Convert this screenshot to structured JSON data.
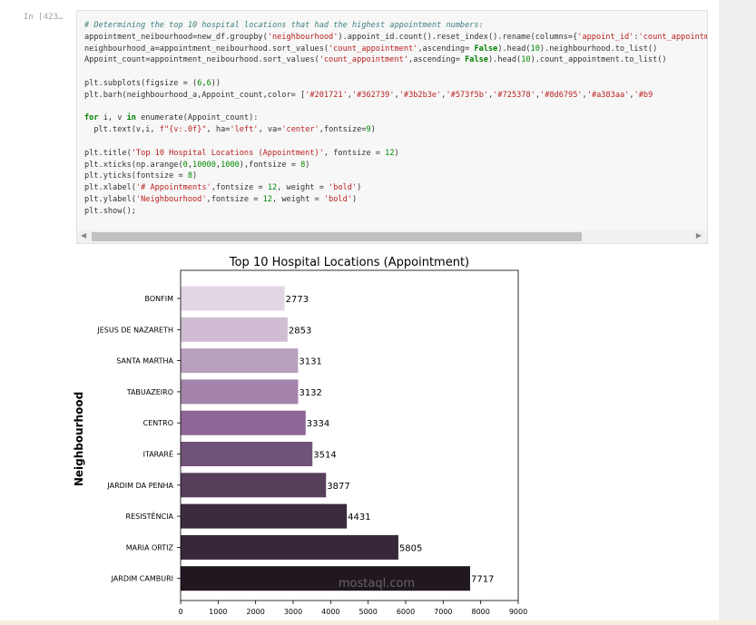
{
  "cell": {
    "prompt": "In [423…",
    "code_lines": [
      {
        "parts": [
          [
            "cm",
            "# Determining the top 10 hospital locations that had the highest appointment numbers:"
          ]
        ]
      },
      {
        "parts": [
          [
            "",
            "appointment_neibourhood=new_df.groupby("
          ],
          [
            "s",
            "'neighbourhood'"
          ],
          [
            "",
            ").appoint_id.count().reset_index().rename(columns={"
          ],
          [
            "s",
            "'appoint_id'"
          ],
          [
            "",
            ":"
          ],
          [
            "s",
            "'count_appointment'"
          ],
          [
            "",
            "})"
          ]
        ]
      },
      {
        "parts": [
          [
            "",
            "neighbourhood_a=appointment_neibourhood.sort_values("
          ],
          [
            "s",
            "'count_appointment'"
          ],
          [
            "",
            ",ascending= "
          ],
          [
            "k",
            "False"
          ],
          [
            "",
            ").head("
          ],
          [
            "n",
            "10"
          ],
          [
            "",
            ").neighbourhood.to_list()"
          ]
        ]
      },
      {
        "parts": [
          [
            "",
            "Appoint_count=appointment_neibourhood.sort_values("
          ],
          [
            "s",
            "'count_appointment'"
          ],
          [
            "",
            ",ascending= "
          ],
          [
            "k",
            "False"
          ],
          [
            "",
            ").head("
          ],
          [
            "n",
            "10"
          ],
          [
            "",
            ").count_appointment.to_list()"
          ]
        ]
      },
      {
        "parts": [
          [
            "",
            ""
          ]
        ]
      },
      {
        "parts": [
          [
            "",
            "plt.subplots(figsize = ("
          ],
          [
            "n",
            "6"
          ],
          [
            "",
            ","
          ],
          [
            "n",
            "6"
          ],
          [
            "",
            "))"
          ]
        ]
      },
      {
        "parts": [
          [
            "",
            "plt.barh(neighbourhood_a,Appoint_count,color= ["
          ],
          [
            "s",
            "'#201721'"
          ],
          [
            "",
            ","
          ],
          [
            "s",
            "'#362739'"
          ],
          [
            "",
            ","
          ],
          [
            "s",
            "'#3b2b3e'"
          ],
          [
            "",
            ","
          ],
          [
            "s",
            "'#573f5b'"
          ],
          [
            "",
            ","
          ],
          [
            "s",
            "'#725378'"
          ],
          [
            "",
            ","
          ],
          [
            "s",
            "'#8d6795'"
          ],
          [
            "",
            ","
          ],
          [
            "s",
            "'#a383aa'"
          ],
          [
            "",
            ","
          ],
          [
            "s",
            "'#b9"
          ]
        ]
      },
      {
        "parts": [
          [
            "",
            ""
          ]
        ]
      },
      {
        "parts": [
          [
            "k",
            "for"
          ],
          [
            "",
            " i, v "
          ],
          [
            "k",
            "in"
          ],
          [
            "",
            " enumerate(Appoint_count):"
          ]
        ]
      },
      {
        "parts": [
          [
            "",
            "  plt.text(v,i, "
          ],
          [
            "s",
            "f\"{v:.0f}\""
          ],
          [
            "",
            ", ha="
          ],
          [
            "s",
            "'left'"
          ],
          [
            "",
            ", va="
          ],
          [
            "s",
            "'center'"
          ],
          [
            "",
            ",fontsize="
          ],
          [
            "n",
            "9"
          ],
          [
            "",
            ")"
          ]
        ]
      },
      {
        "parts": [
          [
            "",
            ""
          ]
        ]
      },
      {
        "parts": [
          [
            "",
            "plt.title("
          ],
          [
            "s",
            "'Top 10 Hospital Locations (Appointment)'"
          ],
          [
            "",
            ", fontsize = "
          ],
          [
            "n",
            "12"
          ],
          [
            "",
            ")"
          ]
        ]
      },
      {
        "parts": [
          [
            "",
            "plt.xticks(np.arange("
          ],
          [
            "n",
            "0"
          ],
          [
            "",
            ","
          ],
          [
            "n",
            "10000"
          ],
          [
            "",
            ","
          ],
          [
            "n",
            "1000"
          ],
          [
            "",
            "),fontsize = "
          ],
          [
            "n",
            "8"
          ],
          [
            "",
            ")"
          ]
        ]
      },
      {
        "parts": [
          [
            "",
            "plt.yticks(fontsize = "
          ],
          [
            "n",
            "8"
          ],
          [
            "",
            ")"
          ]
        ]
      },
      {
        "parts": [
          [
            "",
            "plt.xlabel("
          ],
          [
            "s",
            "'# Appointments'"
          ],
          [
            "",
            ",fontsize = "
          ],
          [
            "n",
            "12"
          ],
          [
            "",
            ", weight = "
          ],
          [
            "s",
            "'bold'"
          ],
          [
            "",
            ")"
          ]
        ]
      },
      {
        "parts": [
          [
            "",
            "plt.ylabel("
          ],
          [
            "s",
            "'Neighbourhood'"
          ],
          [
            "",
            ",fontsize = "
          ],
          [
            "n",
            "12"
          ],
          [
            "",
            ", weight = "
          ],
          [
            "s",
            "'bold'"
          ],
          [
            "",
            ")"
          ]
        ]
      },
      {
        "parts": [
          [
            "",
            "plt.show();"
          ]
        ]
      }
    ]
  },
  "chart_data": {
    "type": "bar",
    "orientation": "horizontal",
    "title": "Top 10 Hospital Locations (Appointment)",
    "ylabel": "Neighbourhood",
    "xlabel": "",
    "categories": [
      "BONFIM",
      "JESUS DE NAZARETH",
      "SANTA MARTHA",
      "TABUAZEIRO",
      "CENTRO",
      "ITARARÉ",
      "JARDIM DA PENHA",
      "RESISTÊNCIA",
      "MARIA ORTIZ",
      "JARDIM CAMBURI"
    ],
    "values": [
      2773,
      2853,
      3131,
      3132,
      3334,
      3514,
      3877,
      4431,
      5805,
      7717
    ],
    "colors": [
      "#e3d6e4",
      "#d0bdd3",
      "#b9a0be",
      "#a383aa",
      "#8d6795",
      "#725378",
      "#573f5b",
      "#3b2b3e",
      "#362739",
      "#201721"
    ],
    "xlim": [
      0,
      9000
    ],
    "xticks": [
      0,
      1000,
      2000,
      3000,
      4000,
      5000,
      6000,
      7000,
      8000,
      9000
    ],
    "grid": false,
    "watermark": "mostaql.com"
  }
}
